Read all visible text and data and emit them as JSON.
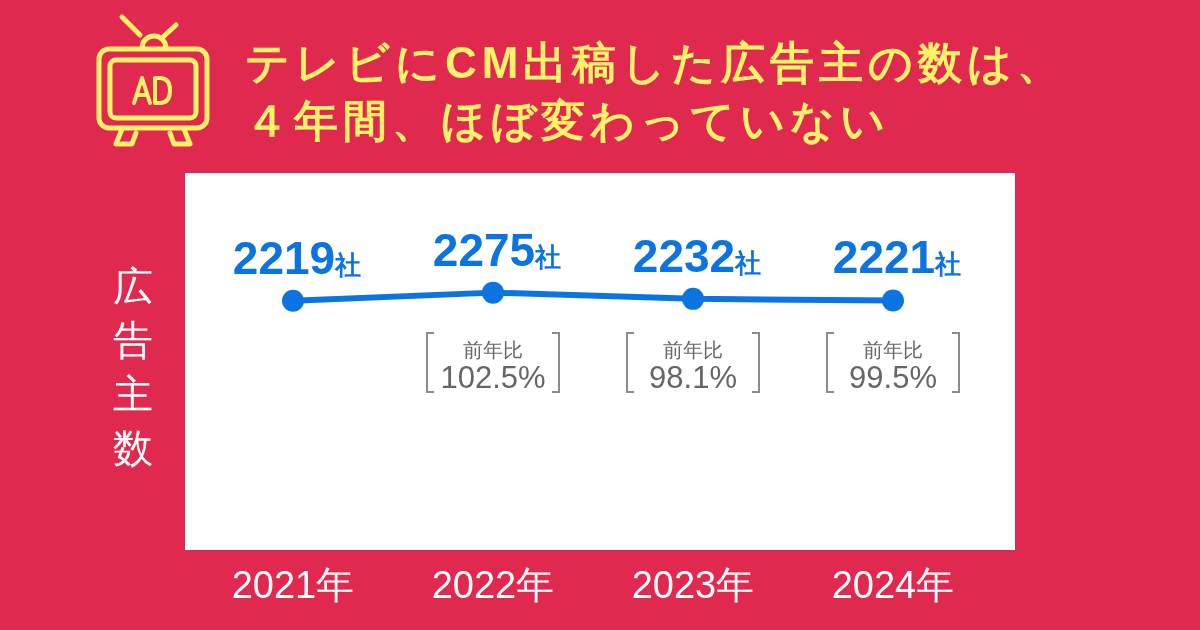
{
  "chart_data": {
    "type": "line",
    "title": "テレビにCM出稿した広告主の数は、４年間、ほぼ変わっていない",
    "ylabel": "広告主数",
    "categories": [
      "2021年",
      "2022年",
      "2023年",
      "2024年"
    ],
    "values": [
      2219,
      2275,
      2232,
      2221
    ],
    "color": "#0b74e0",
    "value_labels": [
      "2219社",
      "2275社",
      "2232社",
      "2221社"
    ],
    "annotations": [
      "前年比\n102.5%",
      "前年比\n98.1%",
      "前年比\n99.5%"
    ],
    "ylim": [
      500,
      3100
    ],
    "tick_labels": "x",
    "marker": "circle",
    "line_style": "solid"
  }
}
